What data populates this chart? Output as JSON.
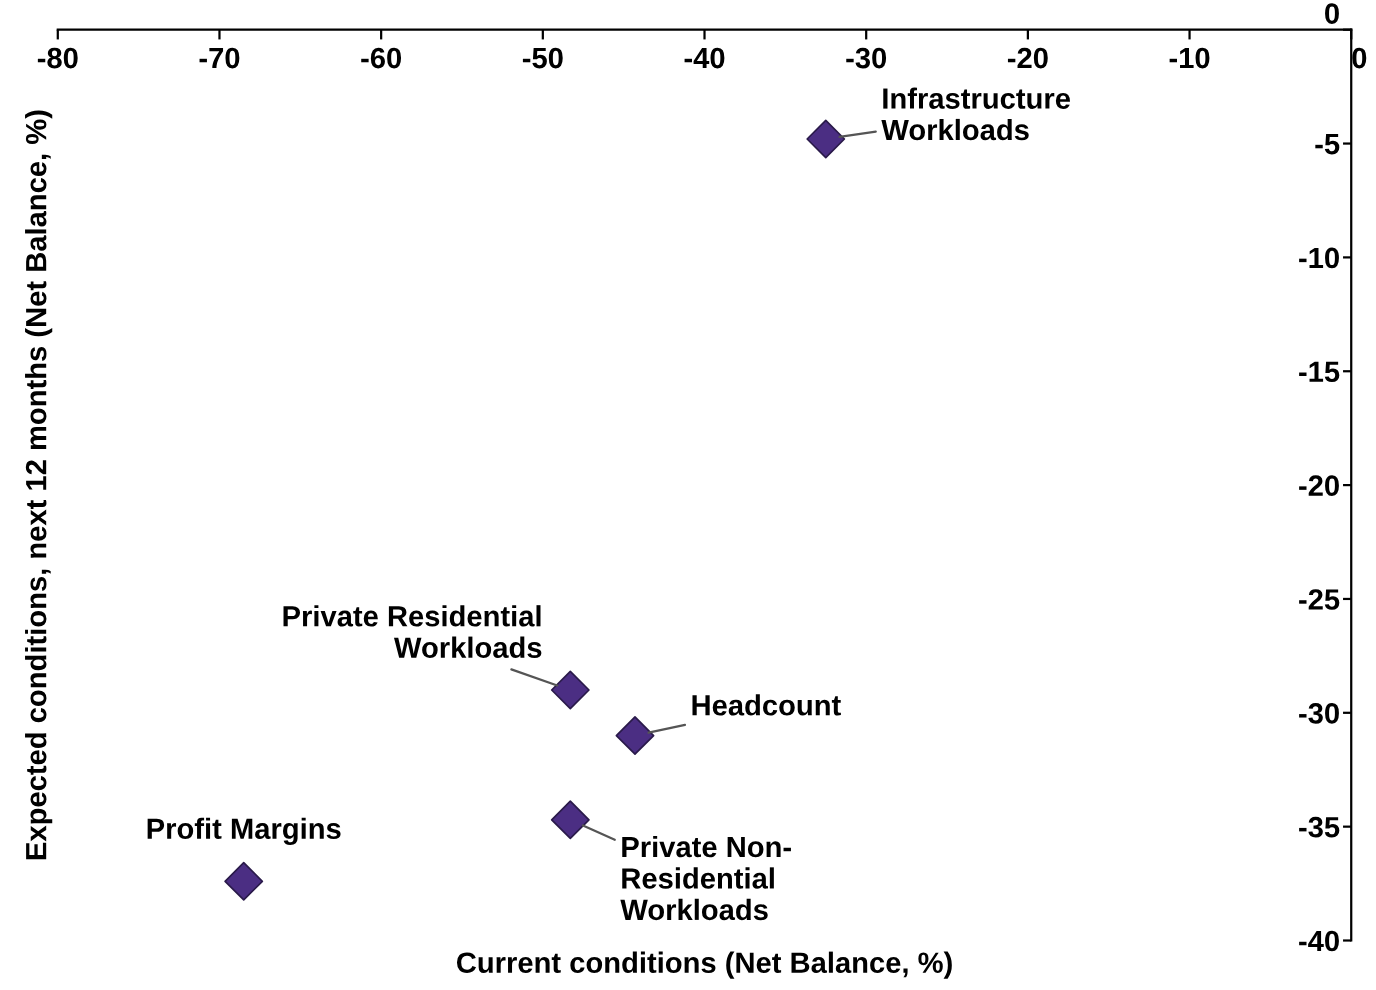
{
  "chart_data": {
    "type": "scatter",
    "xlabel": "Current conditions (Net Balance, %)",
    "ylabel": "Expected conditions, next 12 months (Net Balance, %)",
    "series": [
      {
        "color": "#4b2e83",
        "x": [
          -32.5,
          -48.3,
          -44.3,
          -48.3,
          -68.5
        ],
        "values": [
          -4.8,
          -29.0,
          -31.0,
          -34.7,
          -37.4
        ]
      }
    ],
    "marker": "diamond",
    "xlim": [
      -80,
      0
    ],
    "xticks": [
      -80,
      -70,
      -60,
      -50,
      -40,
      -30,
      -20,
      -10,
      0
    ],
    "ylim": [
      -40,
      0
    ],
    "yticks": [
      0,
      -5,
      -10,
      -15,
      -20,
      -25,
      -30,
      -35,
      -40
    ],
    "grid": false,
    "legend": false,
    "annotations": [
      {
        "text": "Infrastructure\nWorkloads",
        "x": -32.5,
        "y": -4.8
      },
      {
        "text": "Private Residential\nWorkloads",
        "x": -48.3,
        "y": -29.0
      },
      {
        "text": "Headcount",
        "x": -44.3,
        "y": -31.0
      },
      {
        "text": "Private Non-\nResidential\nWorkloads",
        "x": -48.3,
        "y": -34.7
      },
      {
        "text": "Profit Margins",
        "x": -68.5,
        "y": -37.4
      }
    ]
  }
}
